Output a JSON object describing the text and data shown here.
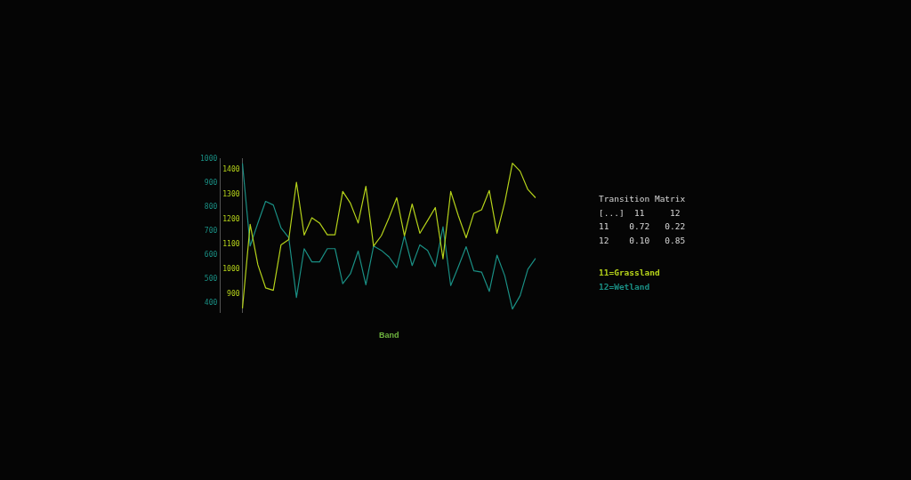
{
  "chart_data": {
    "type": "line",
    "xlabel": "Band",
    "categories": [
      null,
      null,
      null,
      null,
      null,
      null,
      null,
      null,
      null,
      null,
      null,
      null,
      null,
      null,
      null,
      null,
      null,
      null,
      null,
      null,
      null,
      null,
      null,
      null,
      null,
      null,
      null,
      null,
      null,
      null,
      null,
      null,
      null,
      null,
      null,
      null,
      null,
      null,
      null
    ],
    "series": [
      {
        "name": "11=Grassland",
        "color": "#b5d21a",
        "values": [
          845,
          1181,
          1019,
          927,
          917,
          1099,
          1120,
          1349,
          1138,
          1207,
          1186,
          1139,
          1139,
          1312,
          1265,
          1186,
          1333,
          1094,
          1135,
          1207,
          1287,
          1135,
          1262,
          1145,
          1196,
          1248,
          1043,
          1312,
          1214,
          1127,
          1225,
          1239,
          1316,
          1145,
          1268,
          1425,
          1393,
          1320,
          1287
        ]
      },
      {
        "name": "12=Wetland",
        "color": "#1a8f84",
        "axis": "y2",
        "values": [
          981,
          638,
          733,
          823,
          808,
          713,
          673,
          425,
          627,
          572,
          572,
          627,
          627,
          482,
          523,
          617,
          477,
          638,
          620,
          593,
          548,
          680,
          557,
          643,
          620,
          553,
          718,
          474,
          553,
          635,
          535,
          530,
          450,
          600,
          515,
          377,
          432,
          542,
          587
        ]
      }
    ],
    "ylim": [
      830,
      1445
    ],
    "yticks": [
      900,
      1000,
      1100,
      1200,
      1300,
      1400
    ],
    "y2lim": [
      364,
      1002
    ],
    "y2ticks": [
      400,
      500,
      600,
      700,
      800,
      900,
      1000
    ],
    "grid": false,
    "legend": "right",
    "marker": "none",
    "line_style": "solid",
    "annotations": [
      "Transition Matrix",
      "[...]  11     12",
      "11    0.72   0.22",
      "12    0.10   0.85"
    ]
  }
}
